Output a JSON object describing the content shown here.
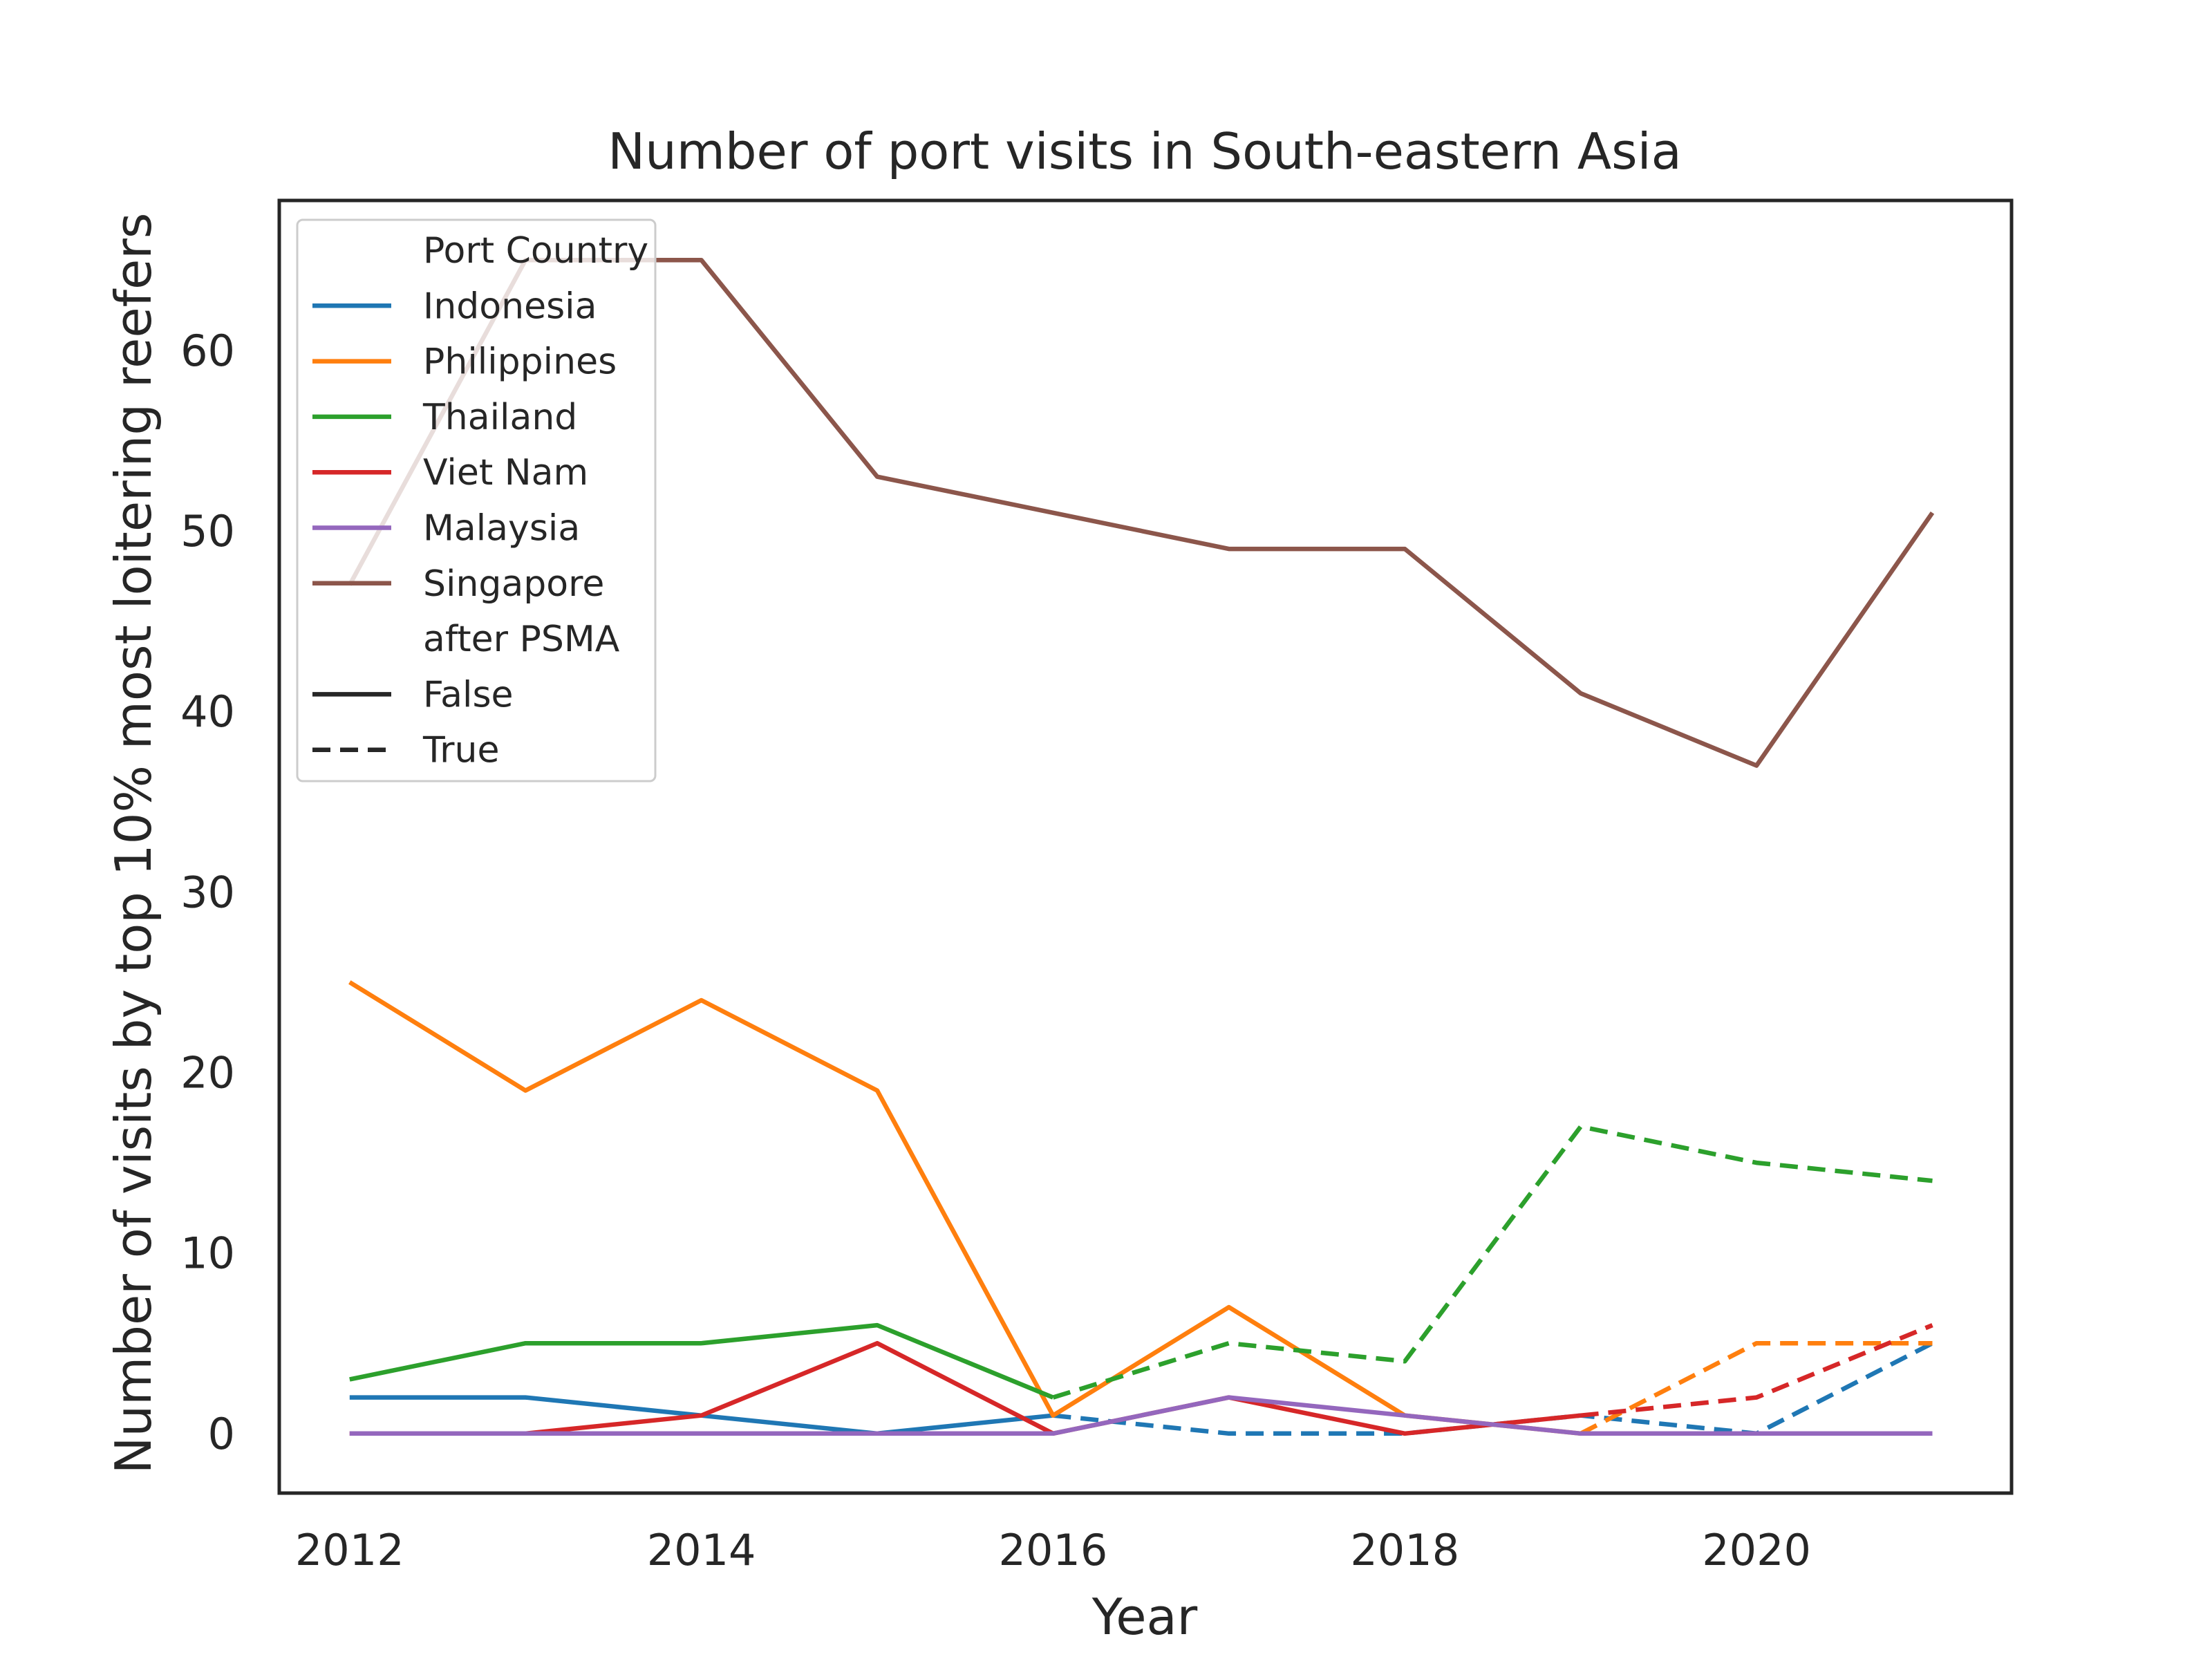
{
  "chart_data": {
    "type": "line",
    "title": "Number of port visits in South-eastern Asia",
    "xlabel": "Year",
    "ylabel": "Number of visits by top 10% most loitering reefers",
    "xlim": [
      2011.6,
      2021.45
    ],
    "ylim": [
      -3.3,
      68.3
    ],
    "x_ticks": [
      2012,
      2014,
      2016,
      2018,
      2020
    ],
    "y_ticks": [
      0,
      10,
      20,
      30,
      40,
      50,
      60
    ],
    "grid": false,
    "legend_position": "top-left",
    "legend": {
      "hue_title": "Port Country",
      "style_title": "after PSMA",
      "style_entries": [
        {
          "label": "False",
          "dash": "solid"
        },
        {
          "label": "True",
          "dash": "dashed"
        }
      ]
    },
    "series": [
      {
        "name": "Indonesia",
        "color": "#1f77b4",
        "segments": [
          {
            "style": "False",
            "points": [
              [
                2012,
                2
              ],
              [
                2013,
                2
              ],
              [
                2014,
                1
              ],
              [
                2015,
                0
              ],
              [
                2016,
                1
              ]
            ]
          },
          {
            "style": "True",
            "points": [
              [
                2016,
                1
              ],
              [
                2017,
                0
              ],
              [
                2018,
                0
              ],
              [
                2019,
                1
              ],
              [
                2020,
                0
              ],
              [
                2021,
                5
              ]
            ]
          }
        ]
      },
      {
        "name": "Philippines",
        "color": "#ff7f0e",
        "segments": [
          {
            "style": "False",
            "points": [
              [
                2012,
                25
              ],
              [
                2013,
                19
              ],
              [
                2014,
                24
              ],
              [
                2015,
                19
              ],
              [
                2016,
                1
              ],
              [
                2017,
                7
              ],
              [
                2018,
                1
              ],
              [
                2019,
                0
              ]
            ]
          },
          {
            "style": "True",
            "points": [
              [
                2019,
                0
              ],
              [
                2020,
                5
              ],
              [
                2021,
                5
              ]
            ]
          }
        ]
      },
      {
        "name": "Thailand",
        "color": "#2ca02c",
        "segments": [
          {
            "style": "False",
            "points": [
              [
                2012,
                3
              ],
              [
                2013,
                5
              ],
              [
                2014,
                5
              ],
              [
                2015,
                6
              ],
              [
                2016,
                2
              ]
            ]
          },
          {
            "style": "True",
            "points": [
              [
                2016,
                2
              ],
              [
                2017,
                5
              ],
              [
                2018,
                4
              ],
              [
                2019,
                17
              ],
              [
                2020,
                15
              ],
              [
                2021,
                14
              ]
            ]
          }
        ]
      },
      {
        "name": "Viet Nam",
        "color": "#d62728",
        "segments": [
          {
            "style": "False",
            "points": [
              [
                2012,
                0
              ],
              [
                2013,
                0
              ],
              [
                2014,
                1
              ],
              [
                2015,
                5
              ],
              [
                2016,
                0
              ],
              [
                2017,
                2
              ],
              [
                2018,
                0
              ],
              [
                2019,
                1
              ]
            ]
          },
          {
            "style": "True",
            "points": [
              [
                2019,
                1
              ],
              [
                2020,
                2
              ],
              [
                2021,
                6
              ]
            ]
          }
        ]
      },
      {
        "name": "Malaysia",
        "color": "#9467bd",
        "segments": [
          {
            "style": "False",
            "points": [
              [
                2012,
                0
              ],
              [
                2013,
                0
              ],
              [
                2014,
                0
              ],
              [
                2015,
                0
              ],
              [
                2016,
                0
              ],
              [
                2017,
                2
              ],
              [
                2018,
                1
              ],
              [
                2019,
                0
              ],
              [
                2020,
                0
              ],
              [
                2021,
                0
              ]
            ]
          }
        ]
      },
      {
        "name": "Singapore",
        "color": "#8c564b",
        "segments": [
          {
            "style": "False",
            "points": [
              [
                2012,
                47
              ],
              [
                2013,
                65
              ],
              [
                2014,
                65
              ],
              [
                2015,
                53
              ],
              [
                2016,
                51
              ],
              [
                2017,
                49
              ],
              [
                2018,
                49
              ],
              [
                2019,
                41
              ],
              [
                2020,
                37
              ],
              [
                2021,
                51
              ]
            ]
          }
        ]
      }
    ]
  }
}
